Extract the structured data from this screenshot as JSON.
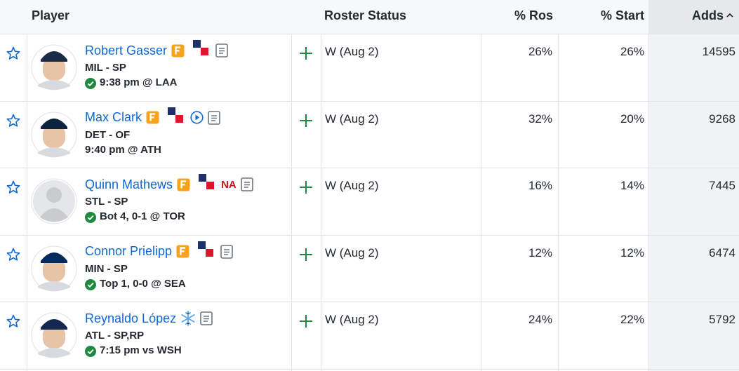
{
  "header": {
    "columns": [
      "Player",
      "Roster Status",
      "% Ros",
      "% Start",
      "Adds"
    ]
  },
  "rows": [
    {
      "name": "Robert Gasser",
      "team": "MIL - SP",
      "game": "9:38 pm @ LAA",
      "status": "W (Aug 2)",
      "ros": "26%",
      "start": "26%",
      "adds": "14595"
    },
    {
      "name": "Max Clark",
      "team": "DET - OF",
      "game": "9:40 pm @ ATH",
      "status": "W (Aug 2)",
      "ros": "32%",
      "start": "20%",
      "adds": "9268"
    },
    {
      "name": "Quinn Mathews",
      "tag": "NA",
      "team": "STL - SP",
      "game": "Bot 4, 0-1 @ TOR",
      "status": "W (Aug 2)",
      "ros": "16%",
      "start": "14%",
      "adds": "7445"
    },
    {
      "name": "Connor Prielipp",
      "team": "MIN - SP",
      "game": "Top 1, 0-0 @ SEA",
      "status": "W (Aug 2)",
      "ros": "12%",
      "start": "12%",
      "adds": "6474"
    },
    {
      "name": "Reynaldo López",
      "team": "ATL - SP,RP",
      "game": "7:15 pm vs WSH",
      "status": "W (Aug 2)",
      "ros": "24%",
      "start": "22%",
      "adds": "5792"
    }
  ]
}
